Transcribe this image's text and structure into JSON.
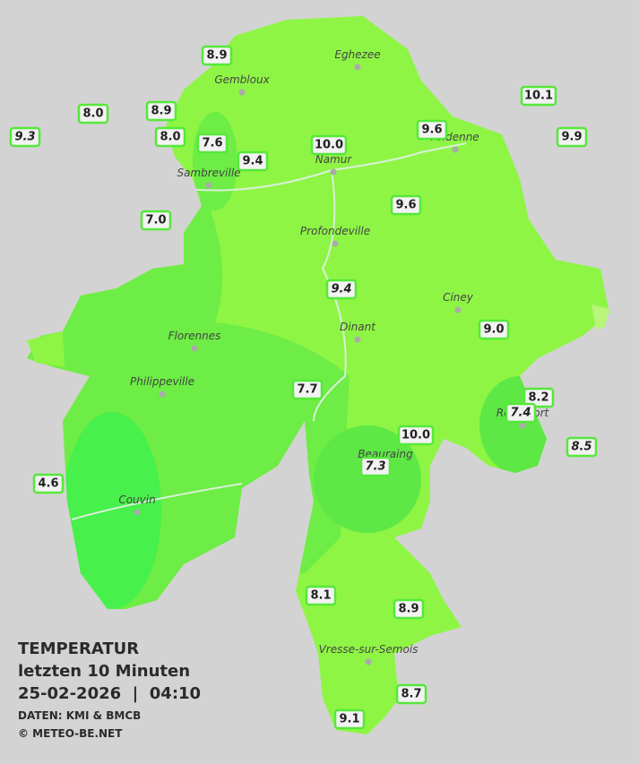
{
  "title": {
    "lines": [
      "TEMPERATUR",
      "letzten 10 Minuten",
      "25-02-2026  |  04:10"
    ],
    "source": "DATEN: KMI & BMCB",
    "credit": "© METEO-BE.NET"
  },
  "cities": [
    "Eghezee",
    "Gembloux",
    "Andenne",
    "Namur",
    "Sambreville",
    "Profondeville",
    "Ciney",
    "Dinant",
    "Florennes",
    "Philippeville",
    "Rochefort",
    "Beauraing",
    "Couvin",
    "Vresse-sur-Semois"
  ],
  "stations": [
    "8.9",
    "8.0",
    "8.9",
    "9.3",
    "8.0",
    "7.6",
    "9.4",
    "10.0",
    "9.6",
    "10.1",
    "9.9",
    "7.0",
    "9.6",
    "9.4",
    "9.0",
    "7.7",
    "8.2",
    "7.4",
    "10.0",
    "8.5",
    "7.3",
    "4.6",
    "8.1",
    "8.9",
    "8.7",
    "9.1"
  ]
}
